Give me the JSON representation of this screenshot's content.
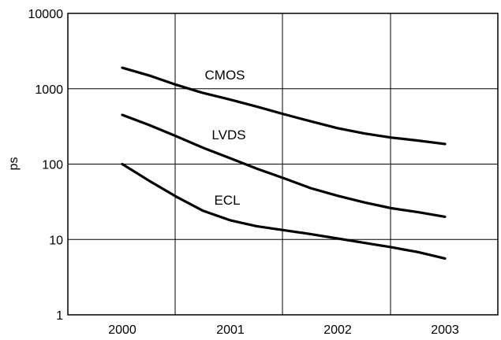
{
  "chart_data": {
    "type": "line",
    "title": "",
    "xlabel": "",
    "ylabel": "ps",
    "yscale": "log",
    "ylim": [
      1,
      10000
    ],
    "yticks": [
      "10000",
      "1000",
      "100",
      "10",
      "1"
    ],
    "ytick_values": [
      10000,
      1000,
      100,
      10,
      1
    ],
    "xlim": [
      2000,
      2003
    ],
    "categories": [
      "2000",
      "2001",
      "2002",
      "2003"
    ],
    "grid": true,
    "series": [
      {
        "name": "CMOS",
        "x": [
          2000,
          2000.25,
          2000.5,
          2000.75,
          2001,
          2001.25,
          2001.5,
          2001.75,
          2002,
          2002.25,
          2002.5,
          2002.75,
          2003
        ],
        "values": [
          1900,
          1500,
          1130,
          880,
          720,
          580,
          460,
          370,
          300,
          255,
          225,
          205,
          185
        ]
      },
      {
        "name": "LVDS",
        "x": [
          2000,
          2000.25,
          2000.5,
          2000.75,
          2001,
          2001.25,
          2001.5,
          2001.75,
          2002,
          2002.25,
          2002.5,
          2002.75,
          2003
        ],
        "values": [
          450,
          330,
          235,
          165,
          120,
          87,
          65,
          48,
          38,
          31,
          26,
          23,
          20
        ]
      },
      {
        "name": "ECL",
        "x": [
          2000,
          2000.25,
          2000.5,
          2000.75,
          2001,
          2001.25,
          2001.5,
          2001.75,
          2002,
          2002.25,
          2002.5,
          2002.75,
          2003
        ],
        "values": [
          100,
          60,
          37,
          24,
          18,
          15,
          13.3,
          11.8,
          10.3,
          9,
          7.9,
          6.8,
          5.6
        ]
      }
    ]
  }
}
